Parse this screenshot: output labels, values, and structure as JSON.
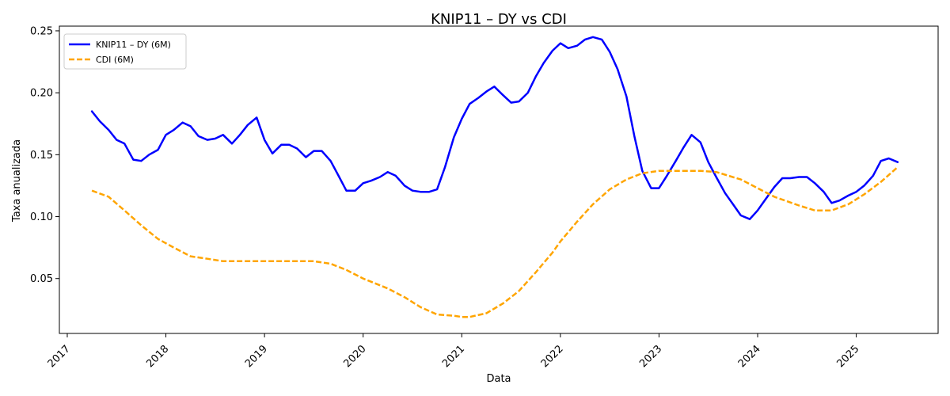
{
  "chart_data": {
    "type": "line",
    "title": "KNIP11 – DY vs CDI",
    "xlabel": "Data",
    "ylabel": "Taxa anualizada",
    "xlim": [
      2016.92,
      2025.83
    ],
    "ylim": [
      0.0057,
      0.2538
    ],
    "xticks": [
      2017,
      2018,
      2019,
      2020,
      2021,
      2022,
      2023,
      2024,
      2025
    ],
    "xtick_labels": [
      "2017",
      "2018",
      "2019",
      "2020",
      "2021",
      "2022",
      "2023",
      "2024",
      "2025"
    ],
    "yticks": [
      0.05,
      0.1,
      0.15,
      0.2,
      0.25
    ],
    "ytick_labels": [
      "0.05",
      "0.10",
      "0.15",
      "0.20",
      "0.25"
    ],
    "grid": false,
    "legend": "top-left",
    "series": [
      {
        "name": "KNIP11 – DY (6M)",
        "color": "#0000ff",
        "style": "solid",
        "x": [
          2017.25,
          2017.33,
          2017.42,
          2017.5,
          2017.58,
          2017.67,
          2017.75,
          2017.83,
          2017.92,
          2018.0,
          2018.08,
          2018.17,
          2018.25,
          2018.33,
          2018.42,
          2018.5,
          2018.58,
          2018.67,
          2018.75,
          2018.83,
          2018.92,
          2019.0,
          2019.08,
          2019.17,
          2019.25,
          2019.33,
          2019.42,
          2019.5,
          2019.58,
          2019.67,
          2019.75,
          2019.83,
          2019.92,
          2020.0,
          2020.08,
          2020.17,
          2020.25,
          2020.33,
          2020.42,
          2020.5,
          2020.58,
          2020.67,
          2020.75,
          2020.83,
          2020.92,
          2021.0,
          2021.08,
          2021.17,
          2021.25,
          2021.33,
          2021.42,
          2021.5,
          2021.58,
          2021.67,
          2021.75,
          2021.83,
          2021.92,
          2022.0,
          2022.08,
          2022.17,
          2022.25,
          2022.33,
          2022.42,
          2022.5,
          2022.58,
          2022.67,
          2022.75,
          2022.83,
          2022.92,
          2023.0,
          2023.08,
          2023.17,
          2023.25,
          2023.33,
          2023.42,
          2023.5,
          2023.58,
          2023.67,
          2023.75,
          2023.83,
          2023.92,
          2024.0,
          2024.08,
          2024.17,
          2024.25,
          2024.33,
          2024.42,
          2024.5,
          2024.58,
          2024.67,
          2024.75,
          2024.83,
          2024.92,
          2025.0,
          2025.08,
          2025.17,
          2025.25,
          2025.33,
          2025.42
        ],
        "values": [
          0.185,
          0.177,
          0.17,
          0.162,
          0.159,
          0.146,
          0.145,
          0.15,
          0.154,
          0.166,
          0.17,
          0.176,
          0.173,
          0.165,
          0.162,
          0.163,
          0.166,
          0.159,
          0.166,
          0.174,
          0.18,
          0.162,
          0.151,
          0.158,
          0.158,
          0.155,
          0.148,
          0.153,
          0.153,
          0.145,
          0.133,
          0.121,
          0.121,
          0.127,
          0.129,
          0.132,
          0.136,
          0.133,
          0.125,
          0.121,
          0.12,
          0.12,
          0.122,
          0.14,
          0.164,
          0.179,
          0.191,
          0.196,
          0.201,
          0.205,
          0.198,
          0.192,
          0.193,
          0.2,
          0.213,
          0.224,
          0.234,
          0.24,
          0.236,
          0.238,
          0.243,
          0.245,
          0.243,
          0.233,
          0.219,
          0.197,
          0.165,
          0.137,
          0.123,
          0.123,
          0.133,
          0.145,
          0.156,
          0.166,
          0.16,
          0.144,
          0.132,
          0.119,
          0.11,
          0.101,
          0.098,
          0.105,
          0.114,
          0.124,
          0.131,
          0.131,
          0.132,
          0.132,
          0.127,
          0.12,
          0.111,
          0.113,
          0.117,
          0.12,
          0.125,
          0.133,
          0.145,
          0.147,
          0.144
        ]
      },
      {
        "name": "CDI (6M)",
        "color": "#ffa500",
        "style": "dashed",
        "x": [
          2017.25,
          2017.42,
          2017.58,
          2017.75,
          2017.92,
          2018.08,
          2018.25,
          2018.42,
          2018.58,
          2018.75,
          2019.0,
          2019.25,
          2019.5,
          2019.67,
          2019.83,
          2020.0,
          2020.25,
          2020.42,
          2020.58,
          2020.75,
          2020.92,
          2021.0,
          2021.08,
          2021.25,
          2021.42,
          2021.58,
          2021.75,
          2021.92,
          2022.0,
          2022.17,
          2022.33,
          2022.5,
          2022.67,
          2022.83,
          2023.0,
          2023.17,
          2023.42,
          2023.58,
          2023.83,
          2024.0,
          2024.17,
          2024.42,
          2024.58,
          2024.75,
          2024.92,
          2025.08,
          2025.25,
          2025.42
        ],
        "values": [
          0.121,
          0.116,
          0.105,
          0.093,
          0.082,
          0.075,
          0.068,
          0.066,
          0.064,
          0.064,
          0.064,
          0.064,
          0.064,
          0.062,
          0.057,
          0.05,
          0.042,
          0.035,
          0.027,
          0.021,
          0.02,
          0.019,
          0.019,
          0.022,
          0.03,
          0.04,
          0.055,
          0.071,
          0.08,
          0.096,
          0.11,
          0.122,
          0.13,
          0.135,
          0.137,
          0.137,
          0.137,
          0.136,
          0.13,
          0.123,
          0.116,
          0.109,
          0.105,
          0.105,
          0.11,
          0.118,
          0.128,
          0.14
        ]
      }
    ]
  }
}
